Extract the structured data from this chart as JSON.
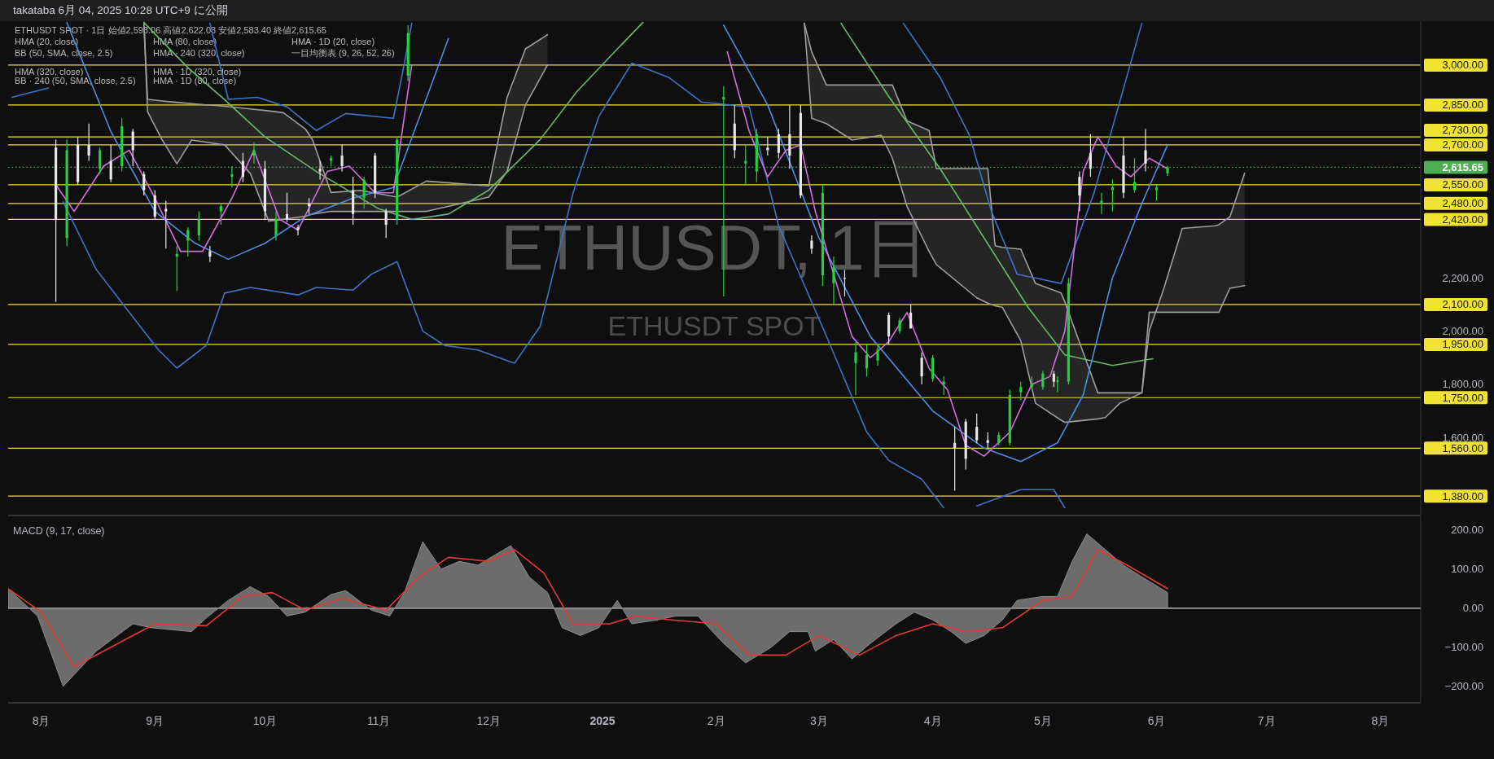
{
  "chart_data": [
    {
      "type": "candlestick",
      "title": "ETHUSDT, 1日",
      "subtitle": "ETHUSDT SPOT",
      "annotations": [
        "takataba 6月 04, 2025 10:28 UTC+9 に公開",
        "ETHUSDT SPOT · 1日 始値2,593.06 高値2,622.03 安値2,583.40 終値2,615.65",
        "HMA (20, close)",
        "BB (50, SMA, close, 2.5)",
        "HMA (320, close)",
        "BB · 240 (50, SMA, close, 2.5)",
        "HMA (80, close)",
        "HMA · 240 (320, close)",
        "HMA · 1D (320, close)",
        "HMA · 1D (80, close)",
        "HMA · 1D (20, close)",
        "一目均衡表 (9, 26, 52, 26)"
      ],
      "xlim": [
        "2024-07-23",
        "2025-08-12"
      ],
      "ylim": [
        1310,
        3165
      ],
      "yticks": [
        {
          "value": 1600,
          "label": "1,600.00"
        },
        {
          "value": 1800,
          "label": "1,800.00"
        },
        {
          "value": 2000,
          "label": "2,000.00"
        },
        {
          "value": 2200,
          "label": "2,200.00"
        }
      ],
      "tick_labels": "y",
      "grid": false,
      "ref_lines": [
        {
          "axis": "y",
          "value": 3000,
          "label": "3,000.00",
          "color": "#f2e232"
        },
        {
          "axis": "y",
          "value": 2850,
          "label": "2,850.00",
          "color": "#f2e232"
        },
        {
          "axis": "y",
          "value": 2730,
          "label": "2,730.00",
          "color": "#f2e232"
        },
        {
          "axis": "y",
          "value": 2700,
          "label": "2,700.00",
          "color": "#f2e232"
        },
        {
          "axis": "y",
          "value": 2615.65,
          "label": "2,615.65",
          "color": "#4caf50",
          "line_style": "dotted"
        },
        {
          "axis": "y",
          "value": 2550,
          "label": "2,550.00",
          "color": "#f2e232"
        },
        {
          "axis": "y",
          "value": 2480,
          "label": "2,480.00",
          "color": "#f2e232"
        },
        {
          "axis": "y",
          "value": 2420,
          "label": "2,420.00",
          "color": "#f2e232"
        },
        {
          "axis": "y",
          "value": 2100,
          "label": "2,100.00",
          "color": "#f2e232"
        },
        {
          "axis": "y",
          "value": 1950,
          "label": "1,950.00",
          "color": "#f2e232"
        },
        {
          "axis": "y",
          "value": 1750,
          "label": "1,750.00",
          "color": "#f2e232"
        },
        {
          "axis": "y",
          "value": 1560,
          "label": "1,560.00",
          "color": "#f2e232"
        },
        {
          "axis": "y",
          "value": 1380,
          "label": "1,380.00",
          "color": "#f2e232"
        }
      ],
      "series": [
        {
          "type": "line",
          "color": "#9e9e9e",
          "x": [
            "2024-08-29",
            "2024-08-30",
            "2024-09-03",
            "2024-09-07",
            "2024-09-11",
            "2024-09-20",
            "2024-09-27",
            "2024-10-02",
            "2024-10-06",
            "2024-10-12",
            "2024-10-14",
            "2024-10-19",
            "2024-10-27",
            "2024-11-06",
            "2024-11-14",
            "2024-12-01",
            "2024-12-06",
            "2024-12-11",
            "2024-12-17",
            "2024-12-22",
            "2025-02-25",
            "2025-02-27",
            "2025-03-03",
            "2025-03-06",
            "2025-03-10",
            "2025-03-18",
            "2025-03-21",
            "2025-03-25",
            "2025-03-31",
            "2025-04-02",
            "2025-04-13",
            "2025-04-16",
            "2025-04-18",
            "2025-04-20",
            "2025-04-25",
            "2025-04-29",
            "2025-05-06",
            "2025-05-07",
            "2025-05-16",
            "2025-05-18",
            "2025-05-22",
            "2025-05-28",
            "2025-05-30",
            "2025-06-03",
            "2025-06-08",
            "2025-06-17",
            "2025-06-18",
            "2025-06-21",
            "2025-06-25"
          ],
          "values": [
            3160,
            2871,
            2865,
            2860,
            2855,
            2845,
            2835,
            2828,
            2821,
            2760,
            2718,
            2521,
            2529,
            2504,
            2564,
            2546,
            2879,
            3061,
            3114,
            null,
            3157,
            3050,
            2925,
            2925,
            2925,
            2925,
            2925,
            2790,
            2754,
            2611,
            2611,
            2611,
            2321,
            2315,
            2308,
            2179,
            2143,
            2110,
            1768,
            1768,
            1768,
            1768,
            2000,
            2161,
            2386,
            2396,
            2400,
            2430,
            2593
          ],
          "upper": [
            3160,
            2871,
            2865,
            2860,
            2855,
            2845,
            2835,
            2828,
            2821,
            2760,
            2718,
            2521,
            2529,
            2504,
            2564,
            2546,
            2879,
            3061,
            3114,
            null,
            3157,
            3050,
            2925,
            2925,
            2925,
            2925,
            2925,
            2790,
            2754,
            2611,
            2611,
            2611,
            2321,
            2315,
            2308,
            2179,
            2143,
            2110,
            1768,
            1768,
            1768,
            1768,
            2000,
            2161,
            2386,
            2396,
            2400,
            2430,
            2593
          ],
          "lower": [
            3160,
            2825,
            2718,
            2629,
            2718,
            2700,
            2593,
            2414,
            2420,
            2432,
            2440,
            2450,
            2450,
            2450,
            2450,
            2504,
            2600,
            2850,
            3000,
            null,
            3157,
            2800,
            2780,
            2754,
            2718,
            2736,
            2650,
            2468,
            2300,
            2250,
            2125,
            2105,
            2095,
            2089,
            1964,
            1729,
            1665,
            1657,
            1670,
            1675,
            1729,
            1768,
            2071,
            2071,
            2071,
            2071,
            2071,
            2161,
            2171
          ]
        },
        {
          "type": "line",
          "color": "#9e9e9e",
          "x": [
            "2024-08-29",
            "2024-08-30",
            "2024-09-03",
            "2024-09-07",
            "2024-09-11",
            "2024-09-20",
            "2024-09-27",
            "2024-10-02",
            "2024-10-06",
            "2024-10-12",
            "2024-10-14",
            "2024-10-19",
            "2024-10-27",
            "2024-11-06",
            "2024-11-14",
            "2024-12-01",
            "2024-12-06",
            "2024-12-11",
            "2024-12-17",
            "2024-12-22",
            "2025-02-25",
            "2025-02-27",
            "2025-03-03",
            "2025-03-06",
            "2025-03-10",
            "2025-03-18",
            "2025-03-21",
            "2025-03-25",
            "2025-03-31",
            "2025-04-02",
            "2025-04-13",
            "2025-04-16",
            "2025-04-18",
            "2025-04-20",
            "2025-04-25",
            "2025-04-29",
            "2025-05-06",
            "2025-05-07",
            "2025-05-16",
            "2025-05-18",
            "2025-05-22",
            "2025-05-28",
            "2025-05-30",
            "2025-06-03",
            "2025-06-08",
            "2025-06-17",
            "2025-06-18",
            "2025-06-21",
            "2025-06-25"
          ],
          "values": [
            3160,
            2825,
            2718,
            2629,
            2718,
            2700,
            2593,
            2414,
            2420,
            2432,
            2440,
            2450,
            2450,
            2450,
            2450,
            2504,
            2600,
            2850,
            3000,
            null,
            3157,
            2800,
            2780,
            2754,
            2718,
            2736,
            2650,
            2468,
            2300,
            2250,
            2125,
            2105,
            2095,
            2089,
            1964,
            1729,
            1665,
            1657,
            1670,
            1675,
            1729,
            1768,
            2071,
            2071,
            2071,
            2071,
            2071,
            2161,
            2171
          ]
        },
        {
          "type": "line",
          "color": "#3d74c9",
          "x": [
            "2024-07-24",
            "2024-08-03",
            "2024-08-06",
            "2024-09-16",
            "2024-09-21",
            "2024-09-29",
            "2024-10-07",
            "2024-10-15",
            "2024-10-23",
            "2024-11-05",
            "2024-11-08",
            "2024-11-10",
            "2024-11-15",
            "2025-03-24",
            "2025-04-03",
            "2025-04-11",
            "2025-04-17",
            "2025-04-24",
            "2025-05-06",
            "2025-05-15",
            "2025-05-28"
          ],
          "values": [
            2879,
            2914,
            null,
            3157,
            2871,
            2879,
            2843,
            2754,
            2818,
            2800,
            3007,
            3157,
            null,
            3157,
            2954,
            2736,
            2450,
            2214,
            2179,
            2521,
            3157
          ]
        },
        {
          "type": "line",
          "color": "#3d74c9",
          "x": [
            "2024-08-07",
            "2024-08-16",
            "2024-08-25",
            "2024-09-02",
            "2024-09-07",
            "2024-09-15",
            "2024-09-20",
            "2024-09-27",
            "2024-10-10",
            "2024-10-15",
            "2024-10-25",
            "2024-10-30",
            "2024-11-06",
            "2024-11-13",
            "2024-11-19",
            "2024-11-28",
            "2024-12-08",
            "2024-12-15",
            "2024-12-24",
            "2024-12-31",
            "2025-01-09",
            "2025-01-19",
            "2025-01-28",
            "2025-02-10",
            "2025-02-18",
            "2025-03-03",
            "2025-03-14",
            "2025-03-20",
            "2025-03-29",
            "2025-04-04",
            "2025-04-08",
            "2025-04-13",
            "2025-04-25",
            "2025-05-04",
            "2025-05-07"
          ],
          "values": [
            2486,
            2232,
            2071,
            1929,
            1861,
            1946,
            2143,
            2164,
            2136,
            2164,
            2154,
            2214,
            2261,
            2000,
            1946,
            1929,
            1879,
            2018,
            2521,
            2807,
            3007,
            2954,
            2861,
            2843,
            2396,
            1982,
            1621,
            1514,
            1443,
            1336,
            null,
            1343,
            1404,
            1404,
            1336
          ]
        },
        {
          "type": "line",
          "color": "#66bb6a",
          "x": [
            "2024-08-29",
            "2024-09-10",
            "2024-09-20",
            "2024-10-01",
            "2024-10-15",
            "2024-11-01",
            "2024-11-10",
            "2024-11-20",
            "2024-12-01",
            "2024-12-15",
            "2024-12-25",
            "2025-01-05",
            "2025-01-12",
            "2025-01-20",
            "2025-03-07",
            "2025-03-20",
            "2025-04-03",
            "2025-04-27",
            "2025-05-07",
            "2025-05-20",
            "2025-05-31"
          ],
          "values": [
            3160,
            2990,
            2870,
            2730,
            2600,
            2460,
            2420,
            2440,
            2530,
            2720,
            2900,
            3060,
            3160,
            null,
            3157,
            2882,
            2611,
            2089,
            1911,
            1871,
            1896
          ]
        },
        {
          "type": "line",
          "color": "#4a90e2",
          "x": [
            "2024-08-08",
            "2024-08-20",
            "2024-09-01",
            "2024-09-12",
            "2024-09-21",
            "2024-10-01",
            "2024-10-12",
            "2024-10-25",
            "2024-11-05",
            "2024-11-12",
            "2024-11-20",
            "2024-11-25",
            "2025-02-03",
            "2025-02-15",
            "2025-03-01",
            "2025-03-15",
            "2025-04-01",
            "2025-04-15",
            "2025-04-25",
            "2025-05-05",
            "2025-05-12",
            "2025-05-20",
            "2025-05-28",
            "2025-06-04"
          ],
          "values": [
            3160,
            2750,
            2450,
            2330,
            2270,
            2330,
            2430,
            2500,
            2540,
            2800,
            3100,
            null,
            3150,
            2850,
            2350,
            1980,
            1700,
            1560,
            1510,
            1580,
            1760,
            2200,
            2480,
            2700
          ]
        },
        {
          "type": "line",
          "color": "#d36fdc",
          "x": [
            "2024-08-05",
            "2024-08-10",
            "2024-08-18",
            "2024-08-25",
            "2024-09-01",
            "2024-09-08",
            "2024-09-14",
            "2024-09-22",
            "2024-09-28",
            "2024-10-05",
            "2024-10-10",
            "2024-10-18",
            "2024-10-24",
            "2024-10-31",
            "2024-11-05",
            "2024-11-10",
            "2024-11-13",
            "2025-02-04",
            "2025-02-10",
            "2025-02-15",
            "2025-02-20",
            "2025-02-24",
            "2025-02-28",
            "2025-03-07",
            "2025-03-10",
            "2025-03-15",
            "2025-03-20",
            "2025-03-25",
            "2025-03-31",
            "2025-04-05",
            "2025-04-10",
            "2025-04-15",
            "2025-04-22",
            "2025-04-28",
            "2025-05-03",
            "2025-05-07",
            "2025-05-12",
            "2025-05-16",
            "2025-05-21",
            "2025-05-25",
            "2025-05-30",
            "2025-06-04"
          ],
          "values": [
            2550,
            2450,
            2620,
            2680,
            2500,
            2300,
            2300,
            2500,
            2680,
            2420,
            2380,
            2600,
            2620,
            2520,
            2520,
            3000,
            null,
            3050,
            2750,
            2580,
            2680,
            2700,
            2450,
            2120,
            1980,
            1900,
            1960,
            2070,
            1860,
            1780,
            1570,
            1530,
            1620,
            1800,
            1830,
            2000,
            2600,
            2730,
            2620,
            2580,
            2650,
            2610
          ]
        },
        {
          "x": [
            "2024-08-05",
            "2024-08-08",
            "2024-08-11",
            "2024-08-14",
            "2024-08-17",
            "2024-08-20",
            "2024-08-23",
            "2024-08-26",
            "2024-08-29",
            "2024-09-01",
            "2024-09-04",
            "2024-09-07",
            "2024-09-10",
            "2024-09-13",
            "2024-09-16",
            "2024-09-19",
            "2024-09-22",
            "2024-09-25",
            "2024-09-28",
            "2024-10-01",
            "2024-10-04",
            "2024-10-07",
            "2024-10-10",
            "2024-10-13",
            "2024-10-16",
            "2024-10-19",
            "2024-10-22",
            "2024-10-25",
            "2024-10-28",
            "2024-10-31",
            "2024-11-03",
            "2024-11-06",
            "2024-11-09",
            "2025-02-03",
            "2025-02-06",
            "2025-02-09",
            "2025-02-12",
            "2025-02-15",
            "2025-02-18",
            "2025-02-21",
            "2025-02-24",
            "2025-02-27",
            "2025-03-02",
            "2025-03-05",
            "2025-03-08",
            "2025-03-11",
            "2025-03-14",
            "2025-03-17",
            "2025-03-20",
            "2025-03-23",
            "2025-03-26",
            "2025-03-29",
            "2025-04-01",
            "2025-04-04",
            "2025-04-07",
            "2025-04-10",
            "2025-04-13",
            "2025-04-16",
            "2025-04-19",
            "2025-04-22",
            "2025-04-25",
            "2025-04-28",
            "2025-05-01",
            "2025-05-04",
            "2025-05-05",
            "2025-05-08",
            "2025-05-11",
            "2025-05-14",
            "2025-05-17",
            "2025-05-20",
            "2025-05-23",
            "2025-05-26",
            "2025-05-29",
            "2025-06-01",
            "2025-06-04"
          ],
          "ohlc": [
            [
              2690,
              2720,
              2110,
              2420
            ],
            [
              2350,
              2720,
              2320,
              2680
            ],
            [
              2700,
              2730,
              2550,
              2560
            ],
            [
              2700,
              2780,
              2640,
              2660
            ],
            [
              2610,
              2690,
              2590,
              2680
            ],
            [
              2640,
              2700,
              2560,
              2570
            ],
            [
              2620,
              2800,
              2600,
              2770
            ],
            [
              2750,
              2760,
              2620,
              2680
            ],
            [
              2590,
              2600,
              2510,
              2530
            ],
            [
              2510,
              2530,
              2420,
              2430
            ],
            [
              2460,
              2490,
              2310,
              2450
            ],
            [
              2280,
              2320,
              2150,
              2290
            ],
            [
              2340,
              2390,
              2280,
              2380
            ],
            [
              2360,
              2450,
              2340,
              2420
            ],
            [
              2300,
              2320,
              2260,
              2280
            ],
            [
              2450,
              2480,
              2400,
              2470
            ],
            [
              2580,
              2620,
              2540,
              2590
            ],
            [
              2640,
              2670,
              2560,
              2580
            ],
            [
              2660,
              2710,
              2630,
              2680
            ],
            [
              2610,
              2640,
              2420,
              2450
            ],
            [
              2360,
              2450,
              2340,
              2420
            ],
            [
              2440,
              2520,
              2410,
              2420
            ],
            [
              2390,
              2400,
              2360,
              2380
            ],
            [
              2480,
              2500,
              2440,
              2470
            ],
            [
              2610,
              2640,
              2570,
              2600
            ],
            [
              2640,
              2660,
              2620,
              2650
            ],
            [
              2660,
              2700,
              2600,
              2620
            ],
            [
              2530,
              2580,
              2400,
              2440
            ],
            [
              2500,
              2580,
              2460,
              2570
            ],
            [
              2660,
              2670,
              2500,
              2520
            ],
            [
              2450,
              2460,
              2350,
              2400
            ],
            [
              2420,
              2730,
              2400,
              2720
            ],
            [
              2960,
              3150,
              2940,
              3120
            ],
            [
              2870,
              2920,
              2130,
              2880
            ],
            [
              2780,
              2850,
              2650,
              2680
            ],
            [
              2630,
              2700,
              2550,
              2640
            ],
            [
              2600,
              2760,
              2560,
              2740
            ],
            [
              2690,
              2730,
              2660,
              2680
            ],
            [
              2740,
              2760,
              2650,
              2670
            ],
            [
              2740,
              2850,
              2610,
              2660
            ],
            [
              2820,
              2850,
              2500,
              2510
            ],
            [
              2340,
              2360,
              2290,
              2310
            ],
            [
              2210,
              2550,
              2170,
              2520
            ],
            [
              2180,
              2280,
              2100,
              2240
            ],
            [
              2200,
              2230,
              2130,
              2200
            ],
            [
              1880,
              1960,
              1760,
              1920
            ],
            [
              1860,
              1950,
              1830,
              1910
            ],
            [
              1890,
              1950,
              1870,
              1930
            ],
            [
              2060,
              2070,
              1950,
              1980
            ],
            [
              2000,
              2050,
              1990,
              2040
            ],
            [
              2070,
              2100,
              2010,
              2010
            ],
            [
              1900,
              1920,
              1800,
              1830
            ],
            [
              1820,
              1910,
              1810,
              1900
            ],
            [
              1800,
              1830,
              1760,
              1810
            ],
            [
              1580,
              1640,
              1400,
              1560
            ],
            [
              1660,
              1670,
              1480,
              1520
            ],
            [
              1640,
              1690,
              1580,
              1590
            ],
            [
              1590,
              1620,
              1560,
              1580
            ],
            [
              1580,
              1620,
              1570,
              1610
            ],
            [
              1580,
              1780,
              1570,
              1760
            ],
            [
              1770,
              1810,
              1740,
              1790
            ],
            [
              1790,
              1830,
              1780,
              1800
            ],
            [
              1790,
              1850,
              1780,
              1840
            ],
            [
              1840,
              1850,
              1790,
              1810
            ],
            [
              1810,
              1830,
              1770,
              1815
            ],
            [
              1810,
              2200,
              1800,
              2180
            ],
            [
              2580,
              2600,
              2450,
              2510
            ],
            [
              2670,
              2740,
              2580,
              2610
            ],
            [
              2480,
              2520,
              2440,
              2490
            ],
            [
              2530,
              2570,
              2450,
              2540
            ],
            [
              2660,
              2730,
              2500,
              2520
            ],
            [
              2530,
              2650,
              2520,
              2560
            ],
            [
              2680,
              2760,
              2600,
              2630
            ],
            [
              2530,
              2550,
              2490,
              2540
            ],
            [
              2593.06,
              2622.03,
              2583.4,
              2615.65
            ]
          ],
          "colors": [
            "#e8e8e8",
            "#22d33d",
            "#e8e8e8",
            "#e8e8e8",
            "#22d33d",
            "#e8e8e8",
            "#22d33d",
            "#e8e8e8",
            "#e8e8e8",
            "#e8e8e8",
            "#e8e8e8",
            "#22d33d",
            "#22d33d",
            "#22d33d",
            "#e8e8e8",
            "#22d33d",
            "#22d33d",
            "#e8e8e8",
            "#22d33d",
            "#e8e8e8",
            "#22d33d",
            "#e8e8e8",
            "#e8e8e8",
            "#e8e8e8",
            "#e8e8e8",
            "#22d33d",
            "#e8e8e8",
            "#e8e8e8",
            "#22d33d",
            "#e8e8e8",
            "#e8e8e8",
            "#22d33d",
            "#22d33d",
            "#22d33d",
            "#e8e8e8",
            "#22d33d",
            "#22d33d",
            "#e8e8e8",
            "#e8e8e8",
            "#e8e8e8",
            "#e8e8e8",
            "#e8e8e8",
            "#22d33d",
            "#22d33d",
            "#e8e8e8",
            "#22d33d",
            "#22d33d",
            "#22d33d",
            "#e8e8e8",
            "#22d33d",
            "#e8e8e8",
            "#e8e8e8",
            "#22d33d",
            "#22d33d",
            "#e8e8e8",
            "#e8e8e8",
            "#e8e8e8",
            "#e8e8e8",
            "#22d33d",
            "#22d33d",
            "#22d33d",
            "#22d33d",
            "#22d33d",
            "#e8e8e8",
            "#22d33d",
            "#22d33d",
            "#e8e8e8",
            "#e8e8e8",
            "#22d33d",
            "#22d33d",
            "#e8e8e8",
            "#22d33d",
            "#e8e8e8",
            "#22d33d",
            "#22d33d"
          ]
        }
      ]
    },
    {
      "type": "area",
      "title": "MACD (9, 17, close)",
      "xlim": [
        "2024-07-23",
        "2025-08-12"
      ],
      "xticks": [
        {
          "value": "2024-08-01",
          "label": "8月"
        },
        {
          "value": "2024-09-01",
          "label": "9月"
        },
        {
          "value": "2024-10-01",
          "label": "10月"
        },
        {
          "value": "2024-11-01",
          "label": "11月"
        },
        {
          "value": "2024-12-01",
          "label": "12月"
        },
        {
          "value": "2025-01-01",
          "label": "2025"
        },
        {
          "value": "2025-02-01",
          "label": "2月"
        },
        {
          "value": "2025-03-01",
          "label": "3月"
        },
        {
          "value": "2025-04-01",
          "label": "4月"
        },
        {
          "value": "2025-05-01",
          "label": "5月"
        },
        {
          "value": "2025-06-01",
          "label": "6月"
        },
        {
          "value": "2025-07-01",
          "label": "7月"
        },
        {
          "value": "2025-08-01",
          "label": "8月"
        }
      ],
      "ylim": [
        -240,
        235
      ],
      "yticks": [
        {
          "value": 200,
          "label": "200.00"
        },
        {
          "value": 100,
          "label": "100.00"
        },
        {
          "value": 0,
          "label": "0.00"
        },
        {
          "value": -100,
          "label": "−100.00"
        },
        {
          "value": -200,
          "label": "−200.00"
        }
      ],
      "grid": false,
      "ref_lines": [
        {
          "axis": "y",
          "value": 0,
          "color": "#d8d8d8"
        }
      ],
      "series": [
        {
          "color": "#8c8c8c",
          "x": [
            "2024-07-23",
            "2024-07-31",
            "2024-08-07",
            "2024-08-16",
            "2024-08-26",
            "2024-08-31",
            "2024-09-11",
            "2024-09-15",
            "2024-09-21",
            "2024-09-27",
            "2024-10-02",
            "2024-10-07",
            "2024-10-12",
            "2024-10-19",
            "2024-10-23",
            "2024-10-30",
            "2024-11-04",
            "2024-11-08",
            "2024-11-13",
            "2024-11-18",
            "2024-11-23",
            "2024-11-28",
            "2024-12-07",
            "2024-12-12",
            "2024-12-17",
            "2024-12-21",
            "2024-12-26",
            "2024-12-31",
            "2025-01-05",
            "2025-01-09",
            "2025-01-16",
            "2025-01-21",
            "2025-01-27",
            "2025-02-03",
            "2025-02-09",
            "2025-02-16",
            "2025-02-21",
            "2025-02-26",
            "2025-02-28",
            "2025-03-05",
            "2025-03-10",
            "2025-03-15",
            "2025-03-22",
            "2025-03-27",
            "2025-04-01",
            "2025-04-06",
            "2025-04-10",
            "2025-04-15",
            "2025-04-20",
            "2025-04-24",
            "2025-05-01",
            "2025-05-05",
            "2025-05-09",
            "2025-05-13",
            "2025-05-18",
            "2025-05-23",
            "2025-05-28",
            "2025-06-04"
          ],
          "values": [
            50,
            -20,
            -200,
            -110,
            -40,
            -50,
            -60,
            -25,
            20,
            55,
            30,
            -20,
            -10,
            35,
            45,
            -5,
            -20,
            40,
            170,
            100,
            120,
            110,
            160,
            80,
            40,
            -50,
            -70,
            -50,
            20,
            -40,
            -30,
            -20,
            -20,
            -90,
            -140,
            -100,
            -60,
            -60,
            -110,
            -80,
            -130,
            -90,
            -40,
            -10,
            -30,
            -60,
            -90,
            -70,
            -30,
            20,
            30,
            30,
            120,
            190,
            150,
            110,
            80,
            40
          ]
        },
        {
          "type": "line",
          "color": "#e53935",
          "x": [
            "2024-07-23",
            "2024-08-01",
            "2024-08-10",
            "2024-08-20",
            "2024-09-01",
            "2024-09-15",
            "2024-09-25",
            "2024-10-03",
            "2024-10-12",
            "2024-10-22",
            "2024-11-03",
            "2024-11-12",
            "2024-11-20",
            "2024-12-01",
            "2024-12-08",
            "2024-12-16",
            "2024-12-24",
            "2025-01-03",
            "2025-01-10",
            "2025-01-20",
            "2025-02-01",
            "2025-02-10",
            "2025-02-20",
            "2025-03-01",
            "2025-03-12",
            "2025-03-22",
            "2025-04-01",
            "2025-04-10",
            "2025-04-20",
            "2025-05-01",
            "2025-05-09",
            "2025-05-16",
            "2025-05-24",
            "2025-06-04"
          ],
          "values": [
            50,
            -10,
            -150,
            -100,
            -40,
            -45,
            30,
            40,
            -5,
            25,
            -5,
            80,
            130,
            120,
            150,
            90,
            -40,
            -40,
            -20,
            -30,
            -40,
            -120,
            -120,
            -70,
            -120,
            -70,
            -40,
            -60,
            -50,
            20,
            30,
            150,
            110,
            50
          ]
        }
      ]
    }
  ]
}
